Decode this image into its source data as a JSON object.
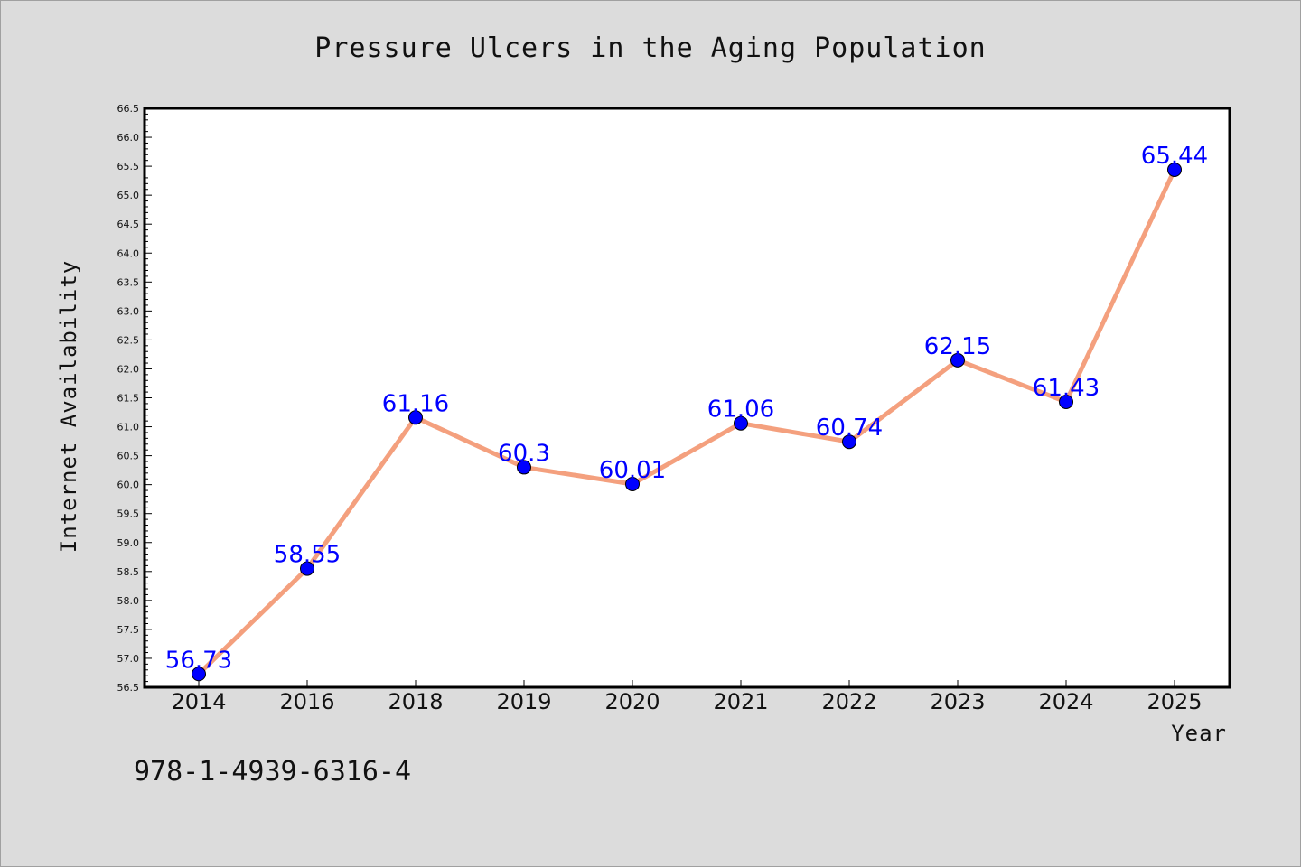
{
  "chart_data": {
    "type": "line",
    "title": "Pressure Ulcers in the Aging Population",
    "xlabel": "Year",
    "ylabel": "Internet Availability",
    "categories": [
      "2014",
      "2016",
      "2018",
      "2019",
      "2020",
      "2021",
      "2022",
      "2023",
      "2024",
      "2025"
    ],
    "values": [
      56.73,
      58.55,
      61.16,
      60.3,
      60.01,
      61.06,
      60.74,
      62.15,
      61.43,
      65.44
    ],
    "data_labels": [
      "56.73",
      "58.55",
      "61.16",
      "60.3",
      "60.01",
      "61.06",
      "60.74",
      "62.15",
      "61.43",
      "65.44"
    ],
    "ylim": [
      56.5,
      66.5
    ],
    "yticks": [
      "56.5",
      "57.0",
      "57.5",
      "58.0",
      "58.5",
      "59.0",
      "59.5",
      "60.0",
      "60.5",
      "61.0",
      "61.5",
      "62.0",
      "62.5",
      "63.0",
      "63.5",
      "64.0",
      "64.5",
      "65.0",
      "65.5",
      "66.0",
      "66.5"
    ],
    "grid": false,
    "legend": "none",
    "colors": {
      "line": "#f4a07e",
      "marker": "#0000ff",
      "label": "#0000ff",
      "plot_bg": "#ffffff",
      "page_bg": "#dcdcdc"
    }
  },
  "footer_text": "978-1-4939-6316-4"
}
